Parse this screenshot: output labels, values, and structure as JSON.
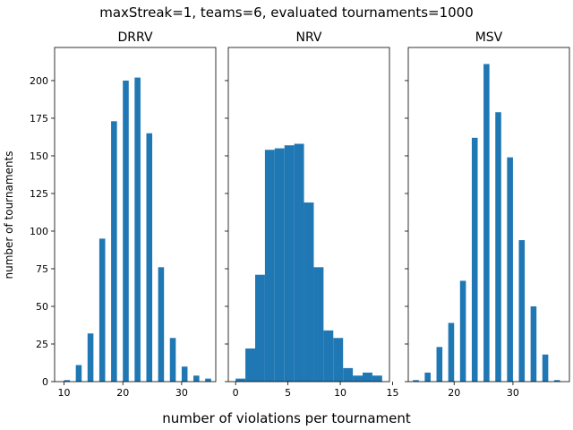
{
  "chart_data": {
    "type": "bar",
    "suptitle": "maxStreak=1, teams=6, evaluated tournaments=1000",
    "xlabel": "number of violations per tournament",
    "ylabel": "number of tournaments",
    "ylim": [
      0,
      222
    ],
    "yticks": [
      0,
      25,
      50,
      75,
      100,
      125,
      150,
      175,
      200
    ],
    "grid": false,
    "color": "#1f77b4",
    "panels": [
      {
        "title": "DRRV",
        "xlim": [
          8.4,
          35.8
        ],
        "xticks": [
          10,
          20,
          30
        ],
        "bin_edges": [
          10,
          11,
          12,
          13,
          14,
          15,
          16,
          17,
          18,
          19,
          20,
          21,
          22,
          23,
          24,
          25,
          26,
          27,
          28,
          29,
          30,
          31,
          32,
          33,
          34,
          35
        ],
        "counts": [
          1,
          0,
          11,
          0,
          32,
          0,
          95,
          0,
          173,
          0,
          200,
          0,
          202,
          0,
          165,
          0,
          76,
          0,
          29,
          0,
          10,
          0,
          4,
          0,
          2
        ]
      },
      {
        "title": "NRV",
        "xlim": [
          -0.7,
          14.7
        ],
        "xticks": [
          0,
          5,
          10,
          15
        ],
        "bin_edges": [
          0,
          0.933,
          1.867,
          2.8,
          3.733,
          4.667,
          5.6,
          6.533,
          7.467,
          8.4,
          9.333,
          10.267,
          11.2,
          12.133,
          13.067,
          14
        ],
        "counts": [
          2,
          22,
          71,
          154,
          155,
          157,
          158,
          119,
          76,
          34,
          29,
          9,
          4,
          6,
          4
        ]
      },
      {
        "title": "MSV",
        "xlim": [
          12.2,
          39.6
        ],
        "xticks": [
          20,
          30
        ],
        "bin_edges": [
          13,
          14,
          15,
          16,
          17,
          18,
          19,
          20,
          21,
          22,
          23,
          24,
          25,
          26,
          27,
          28,
          29,
          30,
          31,
          32,
          33,
          34,
          35,
          36,
          37,
          38,
          39
        ],
        "counts": [
          1,
          0,
          6,
          0,
          23,
          0,
          39,
          0,
          67,
          0,
          162,
          0,
          211,
          0,
          179,
          0,
          149,
          0,
          94,
          0,
          50,
          0,
          18,
          0,
          1,
          0
        ]
      }
    ]
  }
}
